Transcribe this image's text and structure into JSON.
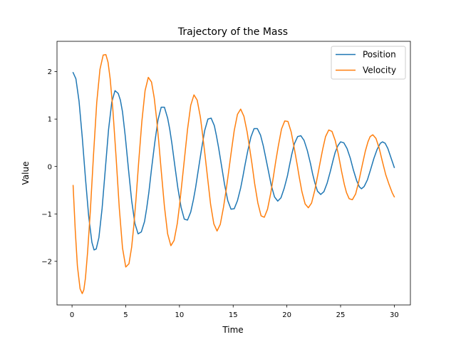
{
  "chart_data": {
    "type": "line",
    "title": "Trajectory of the Mass",
    "xlabel": "Time",
    "ylabel": "Value",
    "xlim": [
      -1.4,
      31.5
    ],
    "ylim": [
      -2.92,
      2.64
    ],
    "xticks": [
      0,
      5,
      10,
      15,
      20,
      25,
      30
    ],
    "xtick_labels": [
      "0",
      "5",
      "10",
      "15",
      "20",
      "25",
      "30"
    ],
    "yticks": [
      -2,
      -1,
      0,
      1,
      2
    ],
    "ytick_labels": [
      "−2",
      "−1",
      "0",
      "1",
      "2"
    ],
    "grid": false,
    "legend_position": "top-right",
    "series": [
      {
        "name": "Position",
        "color": "#1f77b4",
        "x": [
          0.1,
          0.36,
          0.65,
          0.95,
          1.25,
          1.55,
          1.85,
          2.05,
          2.25,
          2.5,
          2.8,
          3.1,
          3.4,
          3.7,
          4.0,
          4.3,
          4.5,
          4.7,
          4.95,
          5.25,
          5.55,
          5.85,
          6.15,
          6.45,
          6.75,
          6.95,
          7.15,
          7.4,
          7.7,
          8.0,
          8.3,
          8.6,
          8.9,
          9.1,
          9.3,
          9.55,
          9.85,
          10.15,
          10.45,
          10.75,
          11.05,
          11.3,
          11.5,
          11.75,
          12.05,
          12.35,
          12.65,
          12.95,
          13.25,
          13.45,
          13.65,
          13.9,
          14.2,
          14.5,
          14.8,
          15.1,
          15.4,
          15.7,
          15.9,
          16.1,
          16.35,
          16.65,
          16.95,
          17.25,
          17.55,
          17.8,
          18.0,
          18.25,
          18.55,
          18.85,
          19.15,
          19.45,
          19.75,
          20.05,
          20.25,
          20.45,
          20.7,
          21.0,
          21.3,
          21.6,
          21.9,
          22.2,
          22.4,
          22.6,
          22.85,
          23.15,
          23.45,
          23.75,
          24.05,
          24.3,
          24.5,
          24.75,
          25.0,
          25.3,
          25.6,
          25.9,
          26.2,
          26.5,
          26.75,
          26.95,
          27.2,
          27.5,
          27.8,
          28.1,
          28.4,
          28.7,
          28.9,
          29.15,
          29.4,
          29.7,
          30.0
        ],
        "y": [
          1.98,
          1.85,
          1.38,
          0.62,
          -0.25,
          -1.05,
          -1.6,
          -1.76,
          -1.74,
          -1.5,
          -0.88,
          -0.05,
          0.78,
          1.36,
          1.6,
          1.54,
          1.4,
          1.15,
          0.65,
          -0.05,
          -0.72,
          -1.2,
          -1.42,
          -1.38,
          -1.16,
          -0.88,
          -0.55,
          -0.05,
          0.5,
          0.98,
          1.25,
          1.25,
          1.02,
          0.78,
          0.48,
          0.05,
          -0.45,
          -0.86,
          -1.11,
          -1.13,
          -0.96,
          -0.7,
          -0.45,
          -0.08,
          0.36,
          0.76,
          1.0,
          1.02,
          0.86,
          0.64,
          0.39,
          0.04,
          -0.38,
          -0.72,
          -0.9,
          -0.89,
          -0.72,
          -0.45,
          -0.22,
          0.03,
          0.32,
          0.62,
          0.8,
          0.8,
          0.66,
          0.44,
          0.22,
          -0.06,
          -0.4,
          -0.64,
          -0.73,
          -0.66,
          -0.46,
          -0.2,
          0.03,
          0.25,
          0.48,
          0.63,
          0.65,
          0.55,
          0.34,
          0.06,
          -0.16,
          -0.34,
          -0.52,
          -0.59,
          -0.53,
          -0.35,
          -0.1,
          0.13,
          0.3,
          0.44,
          0.52,
          0.5,
          0.38,
          0.18,
          -0.08,
          -0.3,
          -0.43,
          -0.47,
          -0.42,
          -0.28,
          -0.06,
          0.17,
          0.36,
          0.49,
          0.52,
          0.49,
          0.38,
          0.18,
          -0.02
        ]
      },
      {
        "name": "Velocity",
        "color": "#ff7f0e",
        "x": [
          0.1,
          0.3,
          0.5,
          0.75,
          0.95,
          1.1,
          1.25,
          1.45,
          1.7,
          2.0,
          2.3,
          2.6,
          2.9,
          3.15,
          3.35,
          3.55,
          3.8,
          4.1,
          4.4,
          4.7,
          5.0,
          5.3,
          5.55,
          5.75,
          5.95,
          6.2,
          6.5,
          6.8,
          7.1,
          7.4,
          7.65,
          7.85,
          8.05,
          8.3,
          8.6,
          8.9,
          9.2,
          9.5,
          9.8,
          10.0,
          10.2,
          10.45,
          10.75,
          11.05,
          11.35,
          11.65,
          11.95,
          12.15,
          12.35,
          12.6,
          12.9,
          13.2,
          13.5,
          13.8,
          14.1,
          14.35,
          14.55,
          14.8,
          15.1,
          15.4,
          15.7,
          16.0,
          16.3,
          16.55,
          16.75,
          17.0,
          17.3,
          17.6,
          17.9,
          18.2,
          18.5,
          18.75,
          18.95,
          19.2,
          19.5,
          19.8,
          20.1,
          20.4,
          20.7,
          20.95,
          21.15,
          21.4,
          21.7,
          22.0,
          22.3,
          22.6,
          22.9,
          23.15,
          23.35,
          23.6,
          23.9,
          24.2,
          24.5,
          24.8,
          25.1,
          25.35,
          25.55,
          25.8,
          26.1,
          26.4,
          26.7,
          27.0,
          27.3,
          27.55,
          27.75,
          28.0,
          28.3,
          28.6,
          28.9,
          29.2,
          29.5,
          29.8,
          30.0
        ],
        "y": [
          -0.4,
          -1.35,
          -2.1,
          -2.58,
          -2.68,
          -2.6,
          -2.35,
          -1.8,
          -0.95,
          0.25,
          1.35,
          2.05,
          2.35,
          2.36,
          2.2,
          1.85,
          1.2,
          0.2,
          -0.88,
          -1.72,
          -2.12,
          -2.05,
          -1.7,
          -1.25,
          -0.7,
          0.08,
          0.95,
          1.6,
          1.88,
          1.78,
          1.45,
          1.05,
          0.58,
          -0.08,
          -0.84,
          -1.42,
          -1.67,
          -1.56,
          -1.2,
          -0.83,
          -0.41,
          0.13,
          0.78,
          1.29,
          1.51,
          1.4,
          1.04,
          0.68,
          0.3,
          -0.2,
          -0.8,
          -1.21,
          -1.36,
          -1.22,
          -0.86,
          -0.49,
          -0.16,
          0.27,
          0.76,
          1.1,
          1.21,
          1.06,
          0.73,
          0.36,
          0.06,
          -0.36,
          -0.77,
          -1.04,
          -1.07,
          -0.9,
          -0.56,
          -0.21,
          0.09,
          0.43,
          0.79,
          0.96,
          0.95,
          0.73,
          0.37,
          0.05,
          -0.22,
          -0.53,
          -0.79,
          -0.87,
          -0.77,
          -0.5,
          -0.15,
          0.15,
          0.38,
          0.63,
          0.77,
          0.74,
          0.55,
          0.25,
          -0.11,
          -0.38,
          -0.55,
          -0.68,
          -0.7,
          -0.58,
          -0.31,
          0.01,
          0.32,
          0.52,
          0.63,
          0.67,
          0.59,
          0.38,
          0.1,
          -0.17,
          -0.37,
          -0.55,
          -0.64
        ]
      }
    ]
  }
}
